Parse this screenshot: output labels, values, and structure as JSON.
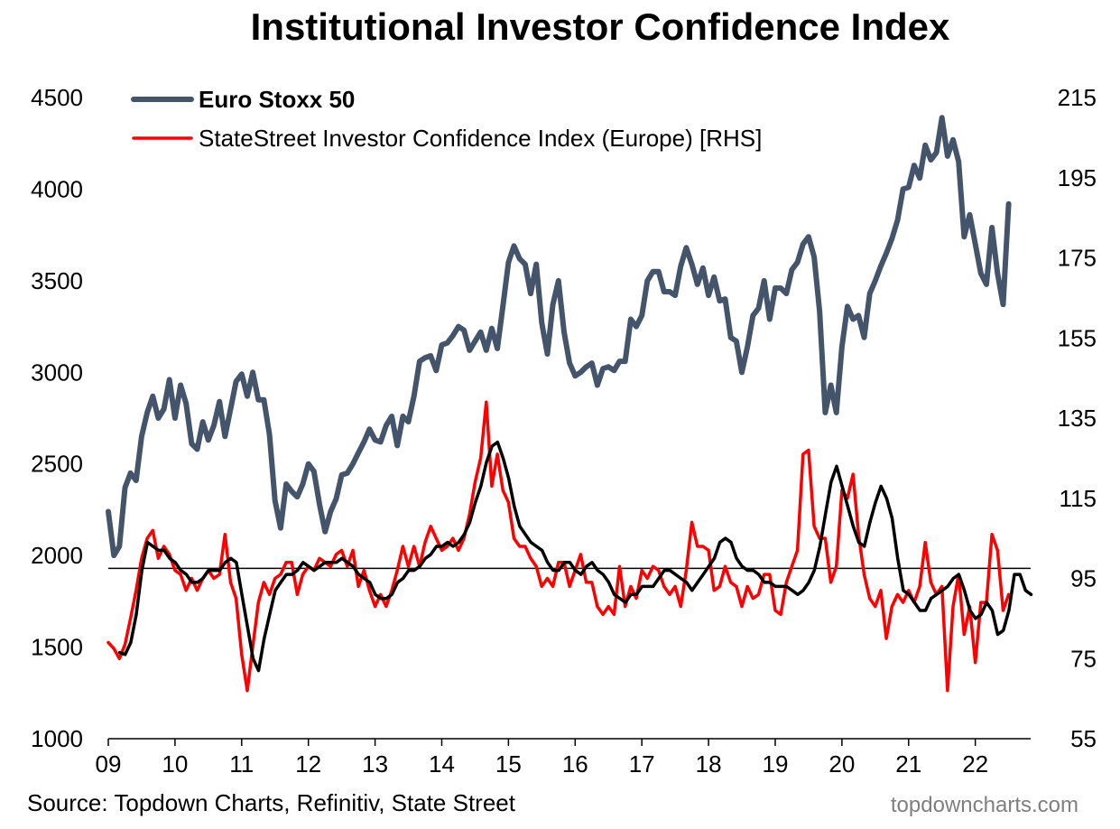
{
  "title": "Institutional Investor Confidence Index",
  "source": "Source: Topdown Charts, Refinitiv, State Street",
  "watermark": "topdowncharts.com",
  "chart_data": {
    "type": "line",
    "title": "Institutional Investor Confidence Index",
    "x_axis": {
      "range": [
        2009.0,
        2022.83
      ],
      "tick_labels": [
        "09",
        "10",
        "11",
        "12",
        "13",
        "14",
        "15",
        "16",
        "17",
        "18",
        "19",
        "20",
        "21",
        "22"
      ],
      "tick_values": [
        2009,
        2010,
        2011,
        2012,
        2013,
        2014,
        2015,
        2016,
        2017,
        2018,
        2019,
        2020,
        2021,
        2022
      ]
    },
    "y_left": {
      "range": [
        1000,
        4500
      ],
      "ticks": [
        1000,
        1500,
        2000,
        2500,
        3000,
        3500,
        4000,
        4500
      ]
    },
    "y_right": {
      "range": [
        55,
        215
      ],
      "ticks": [
        55,
        75,
        95,
        115,
        135,
        155,
        175,
        195,
        215
      ]
    },
    "reference_line": {
      "axis": "right",
      "value": 97.5
    },
    "grid": false,
    "legend_position": "top-left",
    "series": [
      {
        "name": "Euro Stoxx 50",
        "axis": "left",
        "color": "#44546a",
        "bold_legend": true,
        "start": 2009.0,
        "step": 0.0833333,
        "values": [
          2240,
          2000,
          2050,
          2370,
          2450,
          2410,
          2650,
          2780,
          2870,
          2750,
          2800,
          2960,
          2750,
          2930,
          2830,
          2610,
          2580,
          2730,
          2630,
          2710,
          2840,
          2650,
          2800,
          2950,
          2990,
          2870,
          3000,
          2850,
          2850,
          2660,
          2300,
          2150,
          2390,
          2350,
          2320,
          2390,
          2500,
          2460,
          2280,
          2130,
          2240,
          2310,
          2440,
          2450,
          2500,
          2560,
          2620,
          2690,
          2630,
          2620,
          2710,
          2760,
          2600,
          2760,
          2730,
          2870,
          3060,
          3080,
          3090,
          3010,
          3150,
          3160,
          3200,
          3250,
          3230,
          3120,
          3170,
          3220,
          3120,
          3240,
          3130,
          3360,
          3600,
          3690,
          3620,
          3590,
          3430,
          3590,
          3270,
          3100,
          3370,
          3500,
          3220,
          3050,
          2980,
          3000,
          3030,
          3050,
          2930,
          3020,
          3030,
          3010,
          3060,
          3060,
          3290,
          3250,
          3310,
          3500,
          3550,
          3550,
          3440,
          3440,
          3420,
          3580,
          3680,
          3590,
          3480,
          3570,
          3420,
          3520,
          3390,
          3400,
          3190,
          3170,
          3000,
          3140,
          3310,
          3350,
          3500,
          3290,
          3460,
          3460,
          3430,
          3560,
          3600,
          3700,
          3740,
          3630,
          3330,
          2780,
          2930,
          2780,
          3140,
          3360,
          3290,
          3310,
          3190,
          3430,
          3500,
          3580,
          3650,
          3730,
          3830,
          4000,
          4010,
          4130,
          4060,
          4240,
          4160,
          4200,
          4390,
          4180,
          4270,
          4150,
          3740,
          3860,
          3700,
          3540,
          3480,
          3790,
          3540,
          3370,
          3920
        ]
      },
      {
        "name": "StateStreet Investor Confidence Index (Europe) [RHS]",
        "axis": "right",
        "color": "#ff0000",
        "start": 2009.0,
        "step": 0.0833333,
        "values": [
          79,
          77.5,
          75,
          78.5,
          85,
          92,
          100,
          105,
          107,
          100,
          103,
          101,
          97,
          96,
          92,
          95,
          92,
          95,
          97,
          95,
          96,
          106,
          94,
          90,
          76,
          67,
          78,
          89,
          94,
          91,
          95,
          96,
          99,
          99,
          91,
          96,
          98,
          97,
          100,
          99,
          98,
          101,
          102,
          98,
          102,
          93,
          97,
          92,
          88,
          91,
          88,
          92,
          97,
          103,
          98,
          103,
          98,
          104,
          108,
          105,
          102,
          103,
          105,
          102,
          105,
          111,
          119,
          125,
          139,
          118,
          126,
          117,
          114,
          105,
          103,
          103,
          100,
          98,
          93,
          95,
          93,
          99,
          99,
          93,
          97,
          101,
          94,
          94,
          88,
          86,
          88,
          86,
          98,
          88,
          93,
          90,
          97,
          95,
          98,
          97,
          93,
          91,
          93,
          88,
          97,
          109,
          103,
          103,
          102,
          92,
          93,
          98,
          94,
          93,
          88,
          93,
          90,
          91,
          96,
          96,
          87,
          86,
          94,
          98,
          102,
          126,
          127,
          108,
          105,
          105,
          94,
          98,
          117,
          115,
          121,
          106,
          96,
          90,
          88,
          92,
          80,
          88,
          91,
          89,
          92,
          89,
          93,
          104,
          94,
          91,
          93,
          67,
          88,
          96,
          81,
          88,
          74,
          89,
          89,
          106,
          102,
          87,
          91
        ]
      },
      {
        "name": "",
        "axis": "right",
        "color": "#000000",
        "start": 2009.17,
        "step": 0.0833333,
        "values": [
          76.5,
          76,
          79,
          86,
          97,
          104,
          103,
          102,
          102,
          100,
          99,
          97,
          96,
          94,
          94,
          95,
          97,
          97,
          97,
          99,
          100,
          99,
          91,
          83,
          75,
          72,
          80,
          86,
          92,
          94,
          96,
          96,
          97,
          99,
          98,
          97,
          98,
          99,
          99,
          99,
          100,
          99,
          98,
          96,
          95,
          94,
          91,
          90,
          90,
          91,
          94,
          95,
          97,
          97,
          98,
          100,
          101,
          103,
          103,
          104,
          103,
          104,
          106,
          109,
          114,
          118,
          124,
          128,
          129,
          125,
          120,
          113,
          108,
          106,
          104,
          103,
          102,
          99,
          97,
          97,
          99,
          99,
          97,
          96,
          98,
          99,
          97,
          96,
          94,
          91,
          90,
          89,
          91,
          91,
          93,
          93,
          93,
          95,
          97,
          97,
          96,
          95,
          94,
          92,
          94,
          96,
          98,
          100,
          104,
          105,
          104,
          100,
          98,
          97,
          97,
          96,
          94,
          94,
          93,
          93,
          93,
          92,
          91,
          92,
          94,
          97,
          103,
          111,
          119,
          123,
          118,
          113,
          108,
          104,
          103,
          109,
          114,
          118,
          115,
          110,
          100,
          92,
          91,
          89,
          87,
          87,
          90,
          91,
          92,
          93,
          95,
          96,
          92,
          87,
          85,
          86,
          89,
          87,
          81,
          82,
          87,
          96,
          96,
          92,
          91
        ]
      }
    ]
  }
}
